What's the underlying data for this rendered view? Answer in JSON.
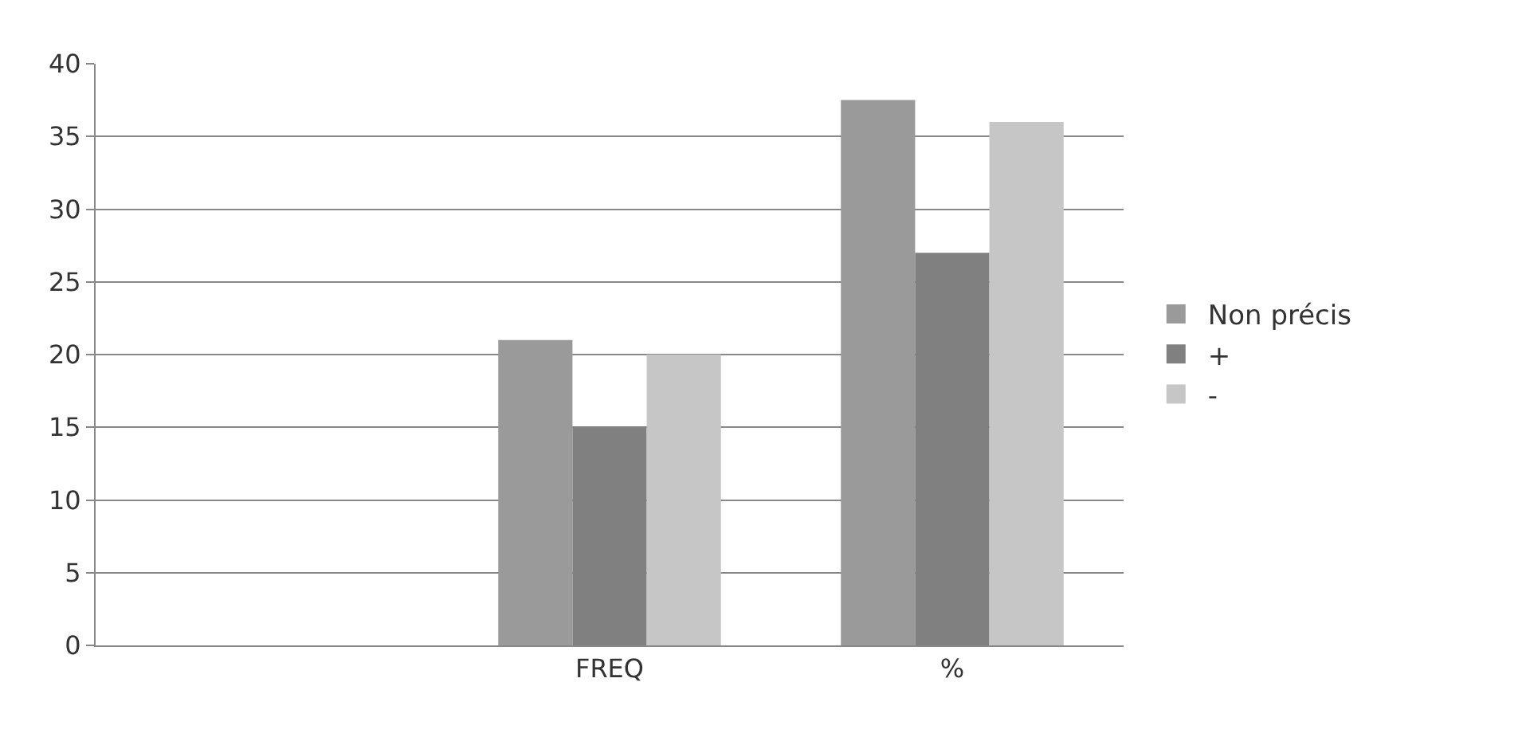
{
  "chart_data": {
    "type": "bar",
    "categories": [
      null,
      "FREQ",
      "%"
    ],
    "series": [
      {
        "name": "Non précis",
        "color": "#9a9a9a",
        "values": [
          null,
          21,
          37.5
        ]
      },
      {
        "name": "+",
        "color": "#808080",
        "values": [
          null,
          15,
          27
        ]
      },
      {
        "name": "-",
        "color": "#c6c6c6",
        "values": [
          null,
          20,
          36
        ]
      }
    ],
    "ylim": [
      0,
      40
    ],
    "yticks": [
      0,
      5,
      10,
      15,
      20,
      25,
      30,
      35,
      40
    ],
    "grid": "y",
    "legend": "right"
  }
}
